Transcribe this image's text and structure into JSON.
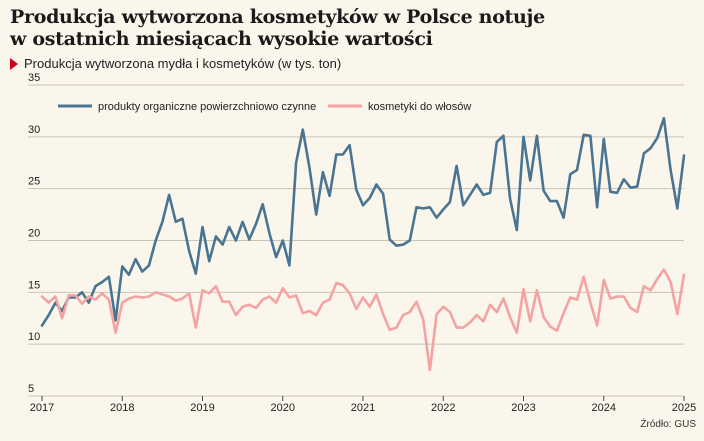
{
  "header": {
    "title_line1": "Produkcja wytworzona kosmetyków w Polsce notuje",
    "title_line2": "w ostatnich miesiącach wysokie wartości",
    "subtitle": "Produkcja wytworzona mydła i kosmetyków (w tys. ton)"
  },
  "source": "Źródło: GUS",
  "colors": {
    "series1": "#4a7592",
    "series2": "#f4a3a3",
    "grid": "#c9c3b8",
    "accent": "#d0021b"
  },
  "chart_data": {
    "type": "line",
    "title": "Produkcja wytworzona kosmetyków w Polsce notuje w ostatnich miesiącach wysokie wartości",
    "subtitle": "Produkcja wytworzona mydła i kosmetyków (w tys. ton)",
    "xlabel": "",
    "ylabel": "",
    "x_ticks": [
      "2017",
      "2018",
      "2019",
      "2020",
      "2021",
      "2022",
      "2023",
      "2024",
      "2025"
    ],
    "x_start": 2017,
    "x_end": 2025,
    "ylim": [
      5,
      35
    ],
    "y_ticks": [
      5,
      10,
      15,
      20,
      25,
      30,
      35
    ],
    "grid": true,
    "legend_position": "top-left",
    "series": [
      {
        "name": "produkty organiczne powierzchniowo czynne",
        "values": [
          11.8,
          12.8,
          14.0,
          13.2,
          14.5,
          14.5,
          15.0,
          14.0,
          15.6,
          16.0,
          16.5,
          12.3,
          17.5,
          16.7,
          18.2,
          17.0,
          17.6,
          20.0,
          21.8,
          24.4,
          21.8,
          22.1,
          19.0,
          16.8,
          21.3,
          18.0,
          20.4,
          19.6,
          21.3,
          20.0,
          21.8,
          20.1,
          21.6,
          23.5,
          20.7,
          18.4,
          20.0,
          17.6,
          27.5,
          30.7,
          27.0,
          22.5,
          26.6,
          24.3,
          28.3,
          28.3,
          29.2,
          24.9,
          23.4,
          24.1,
          25.4,
          24.5,
          20.1,
          19.5,
          19.6,
          20.0,
          23.2,
          23.1,
          23.2,
          22.2,
          23.0,
          23.7,
          27.2,
          23.4,
          24.4,
          25.4,
          24.4,
          24.6,
          29.5,
          30.1,
          24.0,
          21.0,
          30.0,
          25.8,
          30.1,
          24.8,
          23.8,
          23.8,
          22.2,
          26.4,
          26.8,
          30.2,
          30.1,
          23.2,
          29.8,
          24.7,
          24.6,
          25.9,
          25.1,
          25.2,
          28.4,
          28.9,
          29.9,
          31.8,
          26.8,
          23.1,
          28.2
        ]
      },
      {
        "name": "kosmetyki do włosów",
        "values": [
          14.6,
          14.0,
          14.6,
          12.5,
          14.7,
          14.7,
          13.9,
          14.6,
          14.3,
          14.9,
          14.3,
          11.1,
          14.0,
          14.4,
          14.6,
          14.5,
          14.6,
          15.0,
          14.8,
          14.6,
          14.2,
          14.4,
          14.9,
          11.6,
          15.2,
          14.9,
          15.6,
          14.1,
          14.1,
          12.8,
          13.6,
          13.8,
          13.5,
          14.3,
          14.6,
          14.0,
          15.4,
          14.5,
          14.7,
          13.0,
          13.2,
          12.8,
          14.0,
          14.3,
          15.9,
          15.7,
          14.9,
          13.4,
          14.5,
          13.6,
          14.8,
          12.9,
          11.4,
          11.6,
          12.8,
          13.1,
          14.1,
          12.4,
          7.5,
          12.9,
          13.6,
          13.1,
          11.6,
          11.6,
          12.1,
          12.8,
          12.2,
          13.8,
          13.1,
          14.4,
          12.6,
          11.1,
          15.3,
          12.2,
          15.2,
          12.6,
          11.7,
          11.3,
          13.0,
          14.5,
          14.3,
          16.5,
          14.0,
          11.8,
          16.2,
          14.4,
          14.6,
          14.6,
          13.5,
          13.1,
          15.6,
          15.2,
          16.3,
          17.2,
          16.0,
          12.9,
          16.7
        ]
      }
    ]
  }
}
